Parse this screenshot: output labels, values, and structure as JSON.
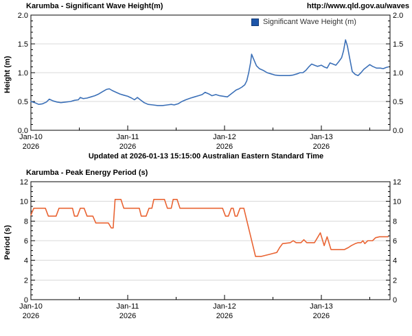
{
  "page": {
    "url": "http://www.qld.gov.au/waves",
    "updated": "Updated at 2026-01-13 15:15:00 Australian Eastern Standard Time"
  },
  "colors": {
    "wave_height_line": "#3a6fb7",
    "legend_swatch": "#1d55a9",
    "period_line": "#e96332",
    "gridline": "#d9d9d9",
    "axis": "#000000"
  },
  "chart_data": [
    {
      "type": "line",
      "title": "Karumba - Significant Wave Height(m)",
      "ylabel": "Height (m)",
      "xlabel": "",
      "xlim": [
        0,
        3.71
      ],
      "ylim": [
        0,
        2
      ],
      "yticks": [
        0,
        0.5,
        1,
        1.5,
        2
      ],
      "ytick_labels": [
        "0.0",
        "0.5",
        "1.0",
        "1.5",
        "2.0"
      ],
      "yminor": 0.1,
      "xticks": [
        0,
        1,
        2,
        3
      ],
      "xtick_labels": [
        {
          "label": "Jan-10",
          "year": "2026"
        },
        {
          "label": "Jan-11",
          "year": "2026"
        },
        {
          "label": "Jan-12",
          "year": "2026"
        },
        {
          "label": "Jan-13",
          "year": "2026"
        }
      ],
      "xminor": 0.5,
      "grid": "horizontal-interior",
      "legend_position": "top-right-inside",
      "legend": {
        "entries": [
          {
            "label": "Significant Wave Height (m)",
            "color": "#1d55a9"
          }
        ]
      },
      "series": [
        {
          "name": "Significant Wave Height (m)",
          "color": "#3a6fb7",
          "x_unit": "days since Jan-10 2026 00:00",
          "points": [
            [
              0,
              0.5
            ],
            [
              0.04,
              0.48
            ],
            [
              0.08,
              0.45
            ],
            [
              0.12,
              0.46
            ],
            [
              0.16,
              0.49
            ],
            [
              0.19,
              0.54
            ],
            [
              0.23,
              0.51
            ],
            [
              0.27,
              0.49
            ],
            [
              0.31,
              0.48
            ],
            [
              0.36,
              0.49
            ],
            [
              0.41,
              0.5
            ],
            [
              0.45,
              0.52
            ],
            [
              0.49,
              0.53
            ],
            [
              0.51,
              0.57
            ],
            [
              0.54,
              0.55
            ],
            [
              0.58,
              0.56
            ],
            [
              0.62,
              0.58
            ],
            [
              0.66,
              0.6
            ],
            [
              0.7,
              0.63
            ],
            [
              0.74,
              0.67
            ],
            [
              0.78,
              0.71
            ],
            [
              0.81,
              0.72
            ],
            [
              0.84,
              0.69
            ],
            [
              0.88,
              0.66
            ],
            [
              0.92,
              0.63
            ],
            [
              0.96,
              0.61
            ],
            [
              1.0,
              0.59
            ],
            [
              1.04,
              0.56
            ],
            [
              1.07,
              0.53
            ],
            [
              1.1,
              0.57
            ],
            [
              1.13,
              0.53
            ],
            [
              1.17,
              0.48
            ],
            [
              1.21,
              0.45
            ],
            [
              1.26,
              0.44
            ],
            [
              1.31,
              0.43
            ],
            [
              1.36,
              0.43
            ],
            [
              1.41,
              0.44
            ],
            [
              1.45,
              0.45
            ],
            [
              1.48,
              0.44
            ],
            [
              1.52,
              0.46
            ],
            [
              1.56,
              0.5
            ],
            [
              1.6,
              0.53
            ],
            [
              1.65,
              0.56
            ],
            [
              1.69,
              0.58
            ],
            [
              1.73,
              0.6
            ],
            [
              1.77,
              0.62
            ],
            [
              1.8,
              0.66
            ],
            [
              1.84,
              0.63
            ],
            [
              1.87,
              0.6
            ],
            [
              1.91,
              0.62
            ],
            [
              1.95,
              0.6
            ],
            [
              1.99,
              0.59
            ],
            [
              2.03,
              0.58
            ],
            [
              2.06,
              0.62
            ],
            [
              2.09,
              0.66
            ],
            [
              2.12,
              0.7
            ],
            [
              2.15,
              0.72
            ],
            [
              2.18,
              0.75
            ],
            [
              2.21,
              0.79
            ],
            [
              2.23,
              0.86
            ],
            [
              2.25,
              1.0
            ],
            [
              2.27,
              1.18
            ],
            [
              2.28,
              1.32
            ],
            [
              2.3,
              1.24
            ],
            [
              2.33,
              1.12
            ],
            [
              2.36,
              1.07
            ],
            [
              2.4,
              1.04
            ],
            [
              2.44,
              1.0
            ],
            [
              2.48,
              0.98
            ],
            [
              2.52,
              0.96
            ],
            [
              2.57,
              0.95
            ],
            [
              2.62,
              0.95
            ],
            [
              2.67,
              0.95
            ],
            [
              2.71,
              0.96
            ],
            [
              2.75,
              0.98
            ],
            [
              2.78,
              1.0
            ],
            [
              2.81,
              1.0
            ],
            [
              2.84,
              1.04
            ],
            [
              2.87,
              1.1
            ],
            [
              2.9,
              1.15
            ],
            [
              2.93,
              1.13
            ],
            [
              2.96,
              1.11
            ],
            [
              3.0,
              1.13
            ],
            [
              3.03,
              1.1
            ],
            [
              3.06,
              1.08
            ],
            [
              3.09,
              1.17
            ],
            [
              3.12,
              1.15
            ],
            [
              3.15,
              1.13
            ],
            [
              3.18,
              1.19
            ],
            [
              3.21,
              1.26
            ],
            [
              3.23,
              1.38
            ],
            [
              3.25,
              1.57
            ],
            [
              3.27,
              1.46
            ],
            [
              3.29,
              1.28
            ],
            [
              3.32,
              1.02
            ],
            [
              3.35,
              0.97
            ],
            [
              3.38,
              0.95
            ],
            [
              3.41,
              1.0
            ],
            [
              3.44,
              1.06
            ],
            [
              3.47,
              1.1
            ],
            [
              3.5,
              1.14
            ],
            [
              3.53,
              1.11
            ],
            [
              3.57,
              1.08
            ],
            [
              3.61,
              1.08
            ],
            [
              3.64,
              1.07
            ],
            [
              3.67,
              1.09
            ],
            [
              3.69,
              1.1
            ]
          ]
        }
      ]
    },
    {
      "type": "line",
      "title": "Karumba - Peak Energy Period (s)",
      "ylabel": "Period (s)",
      "xlabel": "",
      "xlim": [
        0,
        3.71
      ],
      "ylim": [
        0,
        12
      ],
      "yticks": [
        0,
        2,
        4,
        6,
        8,
        10,
        12
      ],
      "ytick_labels": [
        "0",
        "2",
        "4",
        "6",
        "8",
        "10",
        "12"
      ],
      "yminor": 0.5,
      "xticks": [
        0,
        1,
        2,
        3
      ],
      "xtick_labels": [
        {
          "label": "Jan-10",
          "year": "2026"
        },
        {
          "label": "Jan-11",
          "year": "2026"
        },
        {
          "label": "Jan-12",
          "year": "2026"
        },
        {
          "label": "Jan-13",
          "year": "2026"
        }
      ],
      "xminor": 0.5,
      "grid": "horizontal-interior",
      "legend_position": "none",
      "series": [
        {
          "name": "Peak Energy Period (s)",
          "color": "#e96332",
          "x_unit": "days since Jan-10 2026 00:00",
          "points": [
            [
              0,
              8.6
            ],
            [
              0.03,
              9.3
            ],
            [
              0.15,
              9.3
            ],
            [
              0.18,
              8.5
            ],
            [
              0.26,
              8.5
            ],
            [
              0.29,
              9.3
            ],
            [
              0.43,
              9.3
            ],
            [
              0.45,
              8.5
            ],
            [
              0.48,
              8.5
            ],
            [
              0.51,
              9.3
            ],
            [
              0.55,
              9.3
            ],
            [
              0.58,
              8.5
            ],
            [
              0.64,
              8.5
            ],
            [
              0.67,
              7.8
            ],
            [
              0.8,
              7.8
            ],
            [
              0.83,
              7.3
            ],
            [
              0.85,
              7.3
            ],
            [
              0.87,
              10.2
            ],
            [
              0.93,
              10.2
            ],
            [
              0.96,
              9.3
            ],
            [
              1.12,
              9.3
            ],
            [
              1.14,
              8.5
            ],
            [
              1.19,
              8.5
            ],
            [
              1.22,
              9.3
            ],
            [
              1.25,
              9.3
            ],
            [
              1.27,
              10.2
            ],
            [
              1.38,
              10.2
            ],
            [
              1.41,
              9.3
            ],
            [
              1.45,
              9.3
            ],
            [
              1.47,
              10.2
            ],
            [
              1.51,
              10.2
            ],
            [
              1.54,
              9.3
            ],
            [
              1.98,
              9.3
            ],
            [
              2.01,
              8.5
            ],
            [
              2.04,
              8.5
            ],
            [
              2.07,
              9.3
            ],
            [
              2.09,
              9.3
            ],
            [
              2.11,
              8.5
            ],
            [
              2.13,
              8.5
            ],
            [
              2.16,
              9.3
            ],
            [
              2.2,
              9.3
            ],
            [
              2.32,
              4.4
            ],
            [
              2.38,
              4.4
            ],
            [
              2.42,
              4.5
            ],
            [
              2.46,
              4.6
            ],
            [
              2.5,
              4.7
            ],
            [
              2.54,
              4.8
            ],
            [
              2.57,
              5.3
            ],
            [
              2.6,
              5.7
            ],
            [
              2.68,
              5.8
            ],
            [
              2.71,
              6.0
            ],
            [
              2.74,
              5.8
            ],
            [
              2.79,
              5.8
            ],
            [
              2.82,
              6.1
            ],
            [
              2.85,
              5.8
            ],
            [
              2.93,
              5.8
            ],
            [
              2.96,
              6.3
            ],
            [
              2.99,
              6.8
            ],
            [
              3.03,
              5.5
            ],
            [
              3.06,
              6.4
            ],
            [
              3.1,
              5.1
            ],
            [
              3.24,
              5.1
            ],
            [
              3.28,
              5.3
            ],
            [
              3.31,
              5.5
            ],
            [
              3.35,
              5.7
            ],
            [
              3.38,
              5.8
            ],
            [
              3.41,
              5.8
            ],
            [
              3.43,
              6.0
            ],
            [
              3.45,
              5.7
            ],
            [
              3.48,
              6.0
            ],
            [
              3.53,
              6.0
            ],
            [
              3.56,
              6.3
            ],
            [
              3.6,
              6.4
            ],
            [
              3.69,
              6.4
            ]
          ]
        }
      ]
    }
  ]
}
